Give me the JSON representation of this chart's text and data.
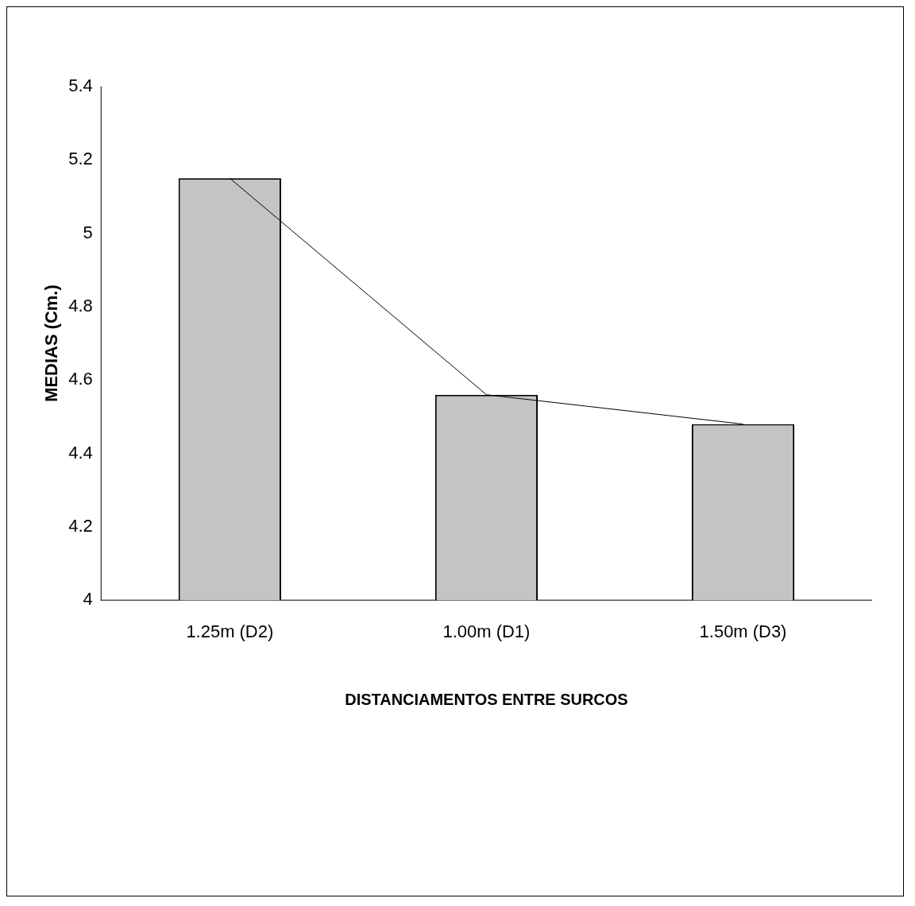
{
  "chart_data": {
    "type": "bar",
    "xlabel": "DISTANCIAMENTOS ENTRE SURCOS",
    "ylabel": "MEDIAS (Cm.)",
    "categories": [
      "1.25m (D2)",
      "1.00m (D1)",
      "1.50m (D3)"
    ],
    "series": [
      {
        "color": "#c4c4c4",
        "values": [
          5.15,
          4.56,
          4.48
        ]
      },
      {
        "type": "line",
        "color": "#000000",
        "values": [
          5.15,
          4.56,
          4.48
        ]
      }
    ],
    "ylim": [
      4,
      5.4
    ],
    "yticks": [
      4,
      4.2,
      4.4,
      4.6,
      4.8,
      5,
      5.2,
      5.4
    ],
    "grid": false,
    "legend": false,
    "marker": "none"
  }
}
